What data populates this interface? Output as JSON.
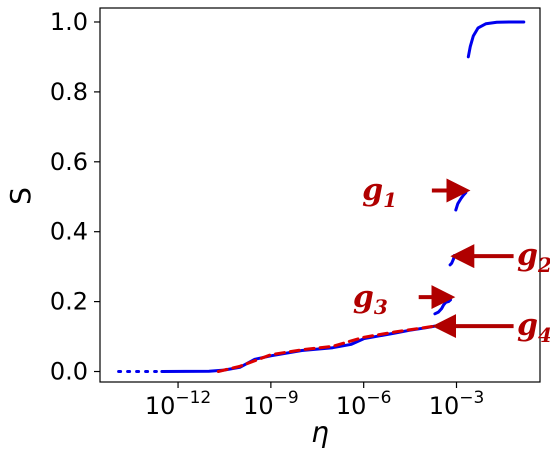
{
  "chart_data": {
    "type": "line",
    "title": "",
    "xlabel": "η",
    "ylabel": "S",
    "x_scale": "log",
    "xlim": [
      3e-15,
      0.5
    ],
    "ylim": [
      -0.03,
      1.04
    ],
    "x_ticks": [
      {
        "value": 1e-12,
        "base": "10",
        "exp": "−12"
      },
      {
        "value": 1e-09,
        "base": "10",
        "exp": "−9"
      },
      {
        "value": 1e-06,
        "base": "10",
        "exp": "−6"
      },
      {
        "value": 0.001,
        "base": "10",
        "exp": "−3"
      }
    ],
    "y_ticks": [
      {
        "value": 0.0,
        "label": "0.0"
      },
      {
        "value": 0.2,
        "label": "0.2"
      },
      {
        "value": 0.4,
        "label": "0.4"
      },
      {
        "value": 0.6,
        "label": "0.6"
      },
      {
        "value": 0.8,
        "label": "0.8"
      },
      {
        "value": 1.0,
        "label": "1.0"
      }
    ],
    "grid": false,
    "legend": "none",
    "series": [
      {
        "color": "#0000ee",
        "style": "dotted",
        "points": [
          [
            1.2e-14,
            0.0
          ],
          [
            2e-13,
            0.0
          ]
        ]
      },
      {
        "color": "#0000ee",
        "style": "solid",
        "points": [
          [
            3e-13,
            0.0
          ],
          [
            1e-11,
            0.001
          ],
          [
            3e-11,
            0.004
          ],
          [
            1e-10,
            0.012
          ],
          [
            3e-10,
            0.035
          ],
          [
            1e-09,
            0.045
          ],
          [
            1e-08,
            0.06
          ],
          [
            1e-07,
            0.068
          ],
          [
            4e-07,
            0.078
          ],
          [
            1e-06,
            0.094
          ],
          [
            1e-05,
            0.11
          ],
          [
            3e-05,
            0.118
          ],
          [
            0.0001,
            0.125
          ],
          [
            0.0002,
            0.13
          ]
        ]
      },
      {
        "color": "#dd0000",
        "style": "dashed",
        "points": [
          [
            2e-11,
            0.0
          ],
          [
            1e-10,
            0.015
          ],
          [
            1e-09,
            0.048
          ],
          [
            1e-08,
            0.062
          ],
          [
            1e-07,
            0.072
          ],
          [
            1e-06,
            0.098
          ],
          [
            1e-05,
            0.113
          ],
          [
            0.0002,
            0.13
          ]
        ]
      },
      {
        "color": "#0000ee",
        "style": "solid",
        "points": [
          [
            0.0002,
            0.165
          ],
          [
            0.00026,
            0.17
          ],
          [
            0.00033,
            0.18
          ],
          [
            0.00038,
            0.19
          ],
          [
            0.00045,
            0.198
          ],
          [
            0.00055,
            0.2
          ],
          [
            0.00064,
            0.205
          ]
        ]
      },
      {
        "color": "#0000ee",
        "style": "solid",
        "points": [
          [
            0.00062,
            0.305
          ],
          [
            0.0007,
            0.31
          ],
          [
            0.0008,
            0.322
          ],
          [
            0.00085,
            0.332
          ]
        ]
      },
      {
        "color": "#0000ee",
        "style": "solid",
        "points": [
          [
            0.00095,
            0.462
          ],
          [
            0.0011,
            0.48
          ],
          [
            0.0014,
            0.495
          ],
          [
            0.0017,
            0.505
          ],
          [
            0.002,
            0.512
          ]
        ]
      },
      {
        "color": "#0000ee",
        "style": "solid",
        "points": [
          [
            0.0024,
            0.9
          ],
          [
            0.0028,
            0.93
          ],
          [
            0.0035,
            0.96
          ],
          [
            0.005,
            0.983
          ],
          [
            0.009,
            0.995
          ],
          [
            0.02,
            0.999
          ],
          [
            0.05,
            1.0
          ],
          [
            0.15,
            1.0
          ]
        ]
      }
    ],
    "annotations": [
      {
        "base": "g",
        "sub": "1",
        "text_x": 1.2e-05,
        "text_y": 0.49,
        "tip_x": 0.0021,
        "tip_y": 0.518,
        "tail_x": 0.00016,
        "tail_y": 0.518,
        "anchor": "end"
      },
      {
        "base": "g",
        "sub": "2",
        "text_x": 0.09,
        "text_y": 0.305,
        "tip_x": 0.00085,
        "tip_y": 0.33,
        "tail_x": 0.07,
        "tail_y": 0.33,
        "anchor": "start"
      },
      {
        "base": "g",
        "sub": "3",
        "text_x": 6e-06,
        "text_y": 0.185,
        "tip_x": 0.00068,
        "tip_y": 0.213,
        "tail_x": 6e-05,
        "tail_y": 0.213,
        "anchor": "end"
      },
      {
        "base": "g",
        "sub": "4",
        "text_x": 0.09,
        "text_y": 0.105,
        "tip_x": 0.00022,
        "tip_y": 0.13,
        "tail_x": 0.07,
        "tail_y": 0.13,
        "anchor": "start"
      }
    ]
  }
}
